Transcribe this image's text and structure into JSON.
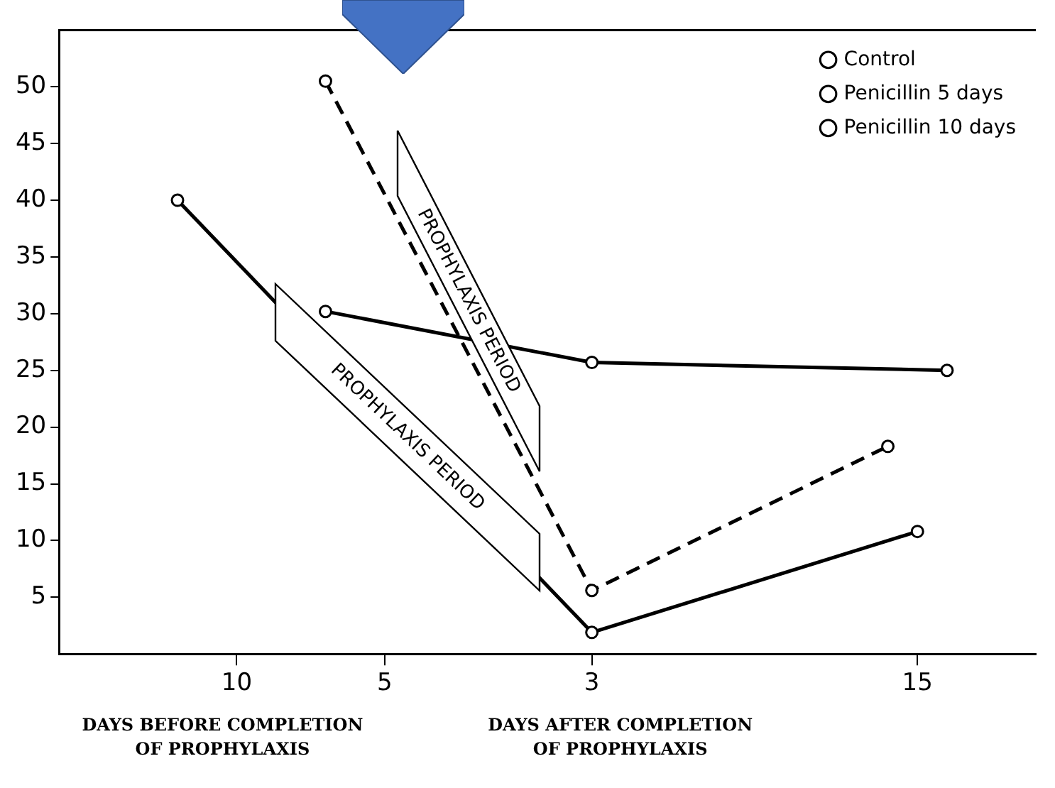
{
  "chart_data": {
    "type": "line",
    "categories": [
      null,
      null,
      null,
      null,
      null,
      null,
      "10",
      null,
      null,
      null,
      null,
      "5",
      null,
      null,
      null,
      null,
      null,
      null,
      "3",
      null,
      null,
      null,
      null,
      null,
      null,
      null,
      null,
      null,
      null,
      "15",
      null,
      null,
      null,
      null
    ],
    "ylim": [
      0,
      55
    ],
    "yticks": [
      5,
      10,
      15,
      20,
      25,
      30,
      35,
      40,
      45,
      50
    ],
    "grid": false,
    "legend": "top right",
    "marker": "circle",
    "series": [
      {
        "name": "Control",
        "color": "#000000",
        "values": [
          null,
          null,
          null,
          null,
          null,
          null,
          null,
          null,
          null,
          30.2,
          null,
          null,
          null,
          null,
          null,
          null,
          null,
          null,
          25.7,
          null,
          null,
          null,
          null,
          null,
          null,
          null,
          null,
          null,
          null,
          null,
          25.0,
          null,
          null,
          null
        ],
        "line_style": "solid"
      },
      {
        "name": "Penicillin 5 days",
        "color": "#000000",
        "values": [
          null,
          null,
          null,
          null,
          null,
          null,
          null,
          null,
          null,
          50.5,
          null,
          null,
          null,
          null,
          null,
          null,
          null,
          null,
          5.6,
          null,
          null,
          null,
          null,
          null,
          null,
          null,
          null,
          null,
          18.3,
          null,
          null,
          null,
          null,
          null
        ],
        "line_style": "dashed"
      },
      {
        "name": "Penicillin 10 days",
        "color": "#000000",
        "values": [
          null,
          null,
          null,
          null,
          40.0,
          null,
          null,
          null,
          null,
          null,
          null,
          null,
          null,
          null,
          null,
          null,
          null,
          null,
          1.9,
          null,
          null,
          null,
          null,
          null,
          null,
          null,
          null,
          null,
          null,
          10.8,
          null,
          null,
          null,
          null
        ],
        "line_style": "solid"
      }
    ],
    "annotations": [
      "PROPHYLAXIS PERIOD",
      "PROPHYLAXIS PERIOD",
      "DAYS BEFORE COMPLETION\nOF PROPHYLAXIS",
      "DAYS AFTER COMPLETION\nOF PROPHYLAXIS"
    ]
  }
}
